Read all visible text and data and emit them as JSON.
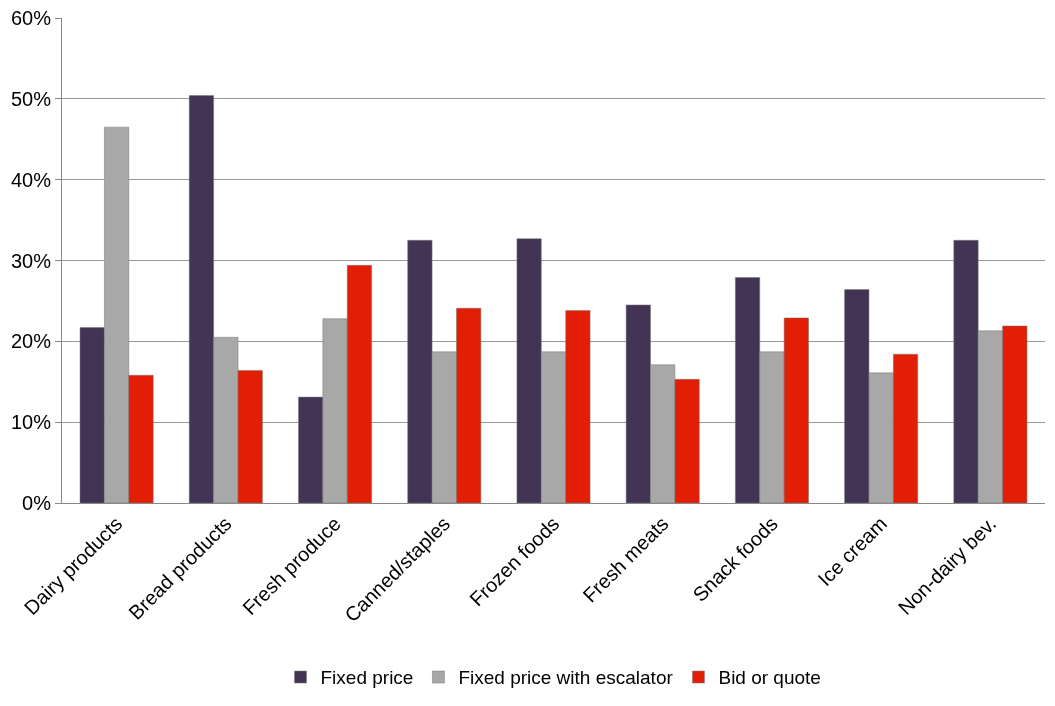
{
  "chart_data": {
    "type": "bar",
    "categories": [
      "Dairy products",
      "Bread products",
      "Fresh produce",
      "Canned/staples",
      "Frozen foods",
      "Fresh meats",
      "Snack foods",
      "Ice cream",
      "Non-dairy bev."
    ],
    "series": [
      {
        "name": "Fixed price",
        "color": "#433456",
        "values": [
          21.7,
          50.4,
          13.1,
          32.5,
          32.7,
          24.5,
          27.9,
          26.4,
          32.5
        ]
      },
      {
        "name": "Fixed price with escalator",
        "color": "#a8a8a8",
        "values": [
          46.5,
          20.5,
          22.8,
          18.7,
          18.7,
          17.1,
          18.7,
          16.1,
          21.3
        ]
      },
      {
        "name": "Bid or quote",
        "color": "#e21e04",
        "values": [
          15.8,
          16.4,
          29.4,
          24.1,
          23.8,
          15.3,
          22.9,
          18.4,
          21.9
        ]
      }
    ],
    "ylim": [
      0,
      60
    ],
    "yticks": [
      {
        "value": 0,
        "label": "0%"
      },
      {
        "value": 10,
        "label": "10%"
      },
      {
        "value": 20,
        "label": "20%"
      },
      {
        "value": 30,
        "label": "30%"
      },
      {
        "value": 40,
        "label": "40%"
      },
      {
        "value": 50,
        "label": "50%"
      },
      {
        "value": 60,
        "label": "60%"
      }
    ],
    "grid": "y",
    "legend": "bottom"
  }
}
